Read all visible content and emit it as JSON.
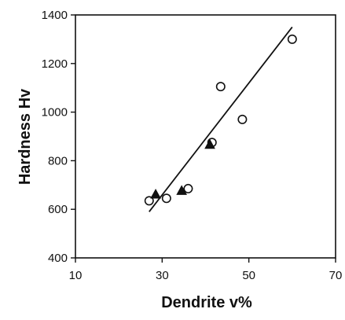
{
  "chart_data": {
    "type": "scatter",
    "title": "",
    "xlabel": "Dendrite v%",
    "ylabel": "Hardness Hv",
    "xlim": [
      10,
      70
    ],
    "ylim": [
      400,
      1400
    ],
    "xticks": [
      "10",
      "30",
      "50",
      "70"
    ],
    "yticks": [
      "400",
      "600",
      "800",
      "1000",
      "1200",
      "1400"
    ],
    "grid": false,
    "legend": "none",
    "series": [
      {
        "marker": "open-circle",
        "points": [
          {
            "x": 27,
            "y": 635
          },
          {
            "x": 31,
            "y": 645
          },
          {
            "x": 36,
            "y": 685
          },
          {
            "x": 41.5,
            "y": 875
          },
          {
            "x": 43.5,
            "y": 1105
          },
          {
            "x": 48.5,
            "y": 970
          },
          {
            "x": 60,
            "y": 1300
          }
        ]
      },
      {
        "marker": "filled-triangle",
        "points": [
          {
            "x": 28.5,
            "y": 660
          },
          {
            "x": 34.5,
            "y": 675
          },
          {
            "x": 41,
            "y": 865
          }
        ]
      }
    ],
    "trendline": {
      "type": "linear",
      "points": [
        {
          "x": 27,
          "y": 590
        },
        {
          "x": 60,
          "y": 1350
        }
      ]
    },
    "colors": {
      "ink": "#111111",
      "background": "#ffffff"
    }
  }
}
